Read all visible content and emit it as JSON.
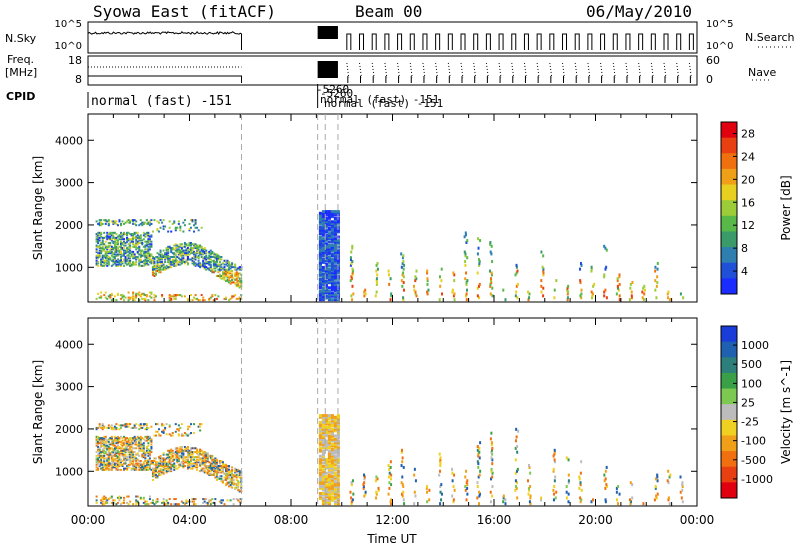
{
  "header": {
    "title": "Syowa East (fitACF)",
    "beam": "Beam 00",
    "date": "06/May/2010"
  },
  "left_labels": {
    "nsky": "N.Sky",
    "freq_line1": "Freq.",
    "freq_line2": "[MHz]",
    "cpid": "CPID"
  },
  "right_labels": {
    "nsearch": "N.Search",
    "nave": "Nave"
  },
  "small_axes": {
    "nsky_ticks": [
      "10^5",
      "10^0"
    ],
    "nsearch_ticks": [
      "10^5",
      "10^0"
    ],
    "freq_ticks": [
      "18",
      "8"
    ],
    "nave_ticks": [
      "60",
      "0"
    ]
  },
  "cpid_labels": {
    "main": "normal (fast) -151",
    "overlap": [
      "-5260",
      "-5260",
      "normal (fast) -151",
      "normal (fast) -151"
    ]
  },
  "chart_data": [
    {
      "type": "heatmap",
      "name": "power",
      "ylabel": "Slant Range [km]",
      "xlabel": "",
      "yticks": [
        1000,
        2000,
        3000,
        4000
      ],
      "ylim": [
        180,
        4620
      ],
      "xlim": [
        "00:00",
        "24:00"
      ],
      "cbar_label": "Power [dB]",
      "cbar_ticks": [
        4,
        8,
        12,
        16,
        20,
        24,
        28
      ],
      "cbar_colors": [
        "#1a2cff",
        "#2050d8",
        "#2e7fb0",
        "#3a9a6a",
        "#58b848",
        "#9ccc38",
        "#e8d020",
        "#f0a018",
        "#f07010",
        "#e84010",
        "#e00010"
      ]
    },
    {
      "type": "heatmap",
      "name": "velocity",
      "ylabel": "Slant Range [km]",
      "xlabel": "Time UT",
      "yticks": [
        1000,
        2000,
        3000,
        4000
      ],
      "ylim": [
        180,
        4620
      ],
      "xticks": [
        "00:00",
        "04:00",
        "08:00",
        "12:00",
        "16:00",
        "20:00",
        "00:00"
      ],
      "cbar_label": "Velocity [m s^-1]",
      "cbar_ticks": [
        "1000",
        "500",
        "100",
        "25",
        "-25",
        "-100",
        "-500",
        "-1000"
      ],
      "cbar_colors": [
        "#1a3cd8",
        "#2060b0",
        "#2c7f7a",
        "#3aa048",
        "#7cc850",
        "#bcbcbc",
        "#f0d020",
        "#f0a018",
        "#f07010",
        "#e84010",
        "#e00010"
      ]
    }
  ]
}
